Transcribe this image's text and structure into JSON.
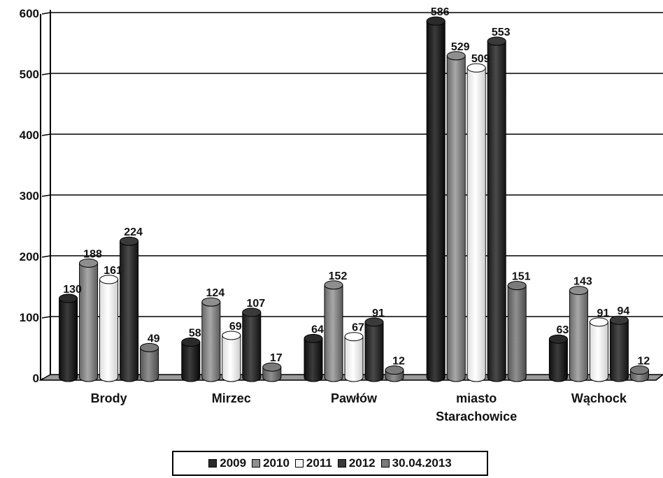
{
  "chart_data": {
    "type": "bar",
    "style": "3d-cylinder",
    "categories": [
      [
        "Brody"
      ],
      [
        "Mirzec"
      ],
      [
        "Pawłów"
      ],
      [
        "miasto",
        "Starachowice"
      ],
      [
        "Wąchock"
      ]
    ],
    "series": [
      {
        "name": "2009",
        "values": [
          130,
          58,
          64,
          586,
          63
        ],
        "color": "#2a2a2a"
      },
      {
        "name": "2010",
        "values": [
          188,
          124,
          152,
          529,
          143
        ],
        "color": "#8e8e8e"
      },
      {
        "name": "2011",
        "values": [
          161,
          69,
          67,
          509,
          91
        ],
        "color": "#f4f4f4"
      },
      {
        "name": "2012",
        "values": [
          224,
          107,
          91,
          553,
          94
        ],
        "color": "#3a3a3a"
      },
      {
        "name": "30.04.2013",
        "values": [
          49,
          17,
          12,
          151,
          12
        ],
        "color": "#7a7a7a"
      }
    ],
    "data_labels": [
      [
        "130",
        "58",
        "64",
        "586",
        "63"
      ],
      [
        "188",
        "124",
        "152",
        "529",
        "143"
      ],
      [
        "161",
        "69",
        "67",
        "509",
        "91"
      ],
      [
        "224",
        "107",
        "91",
        "553",
        "94"
      ],
      [
        "49",
        "17",
        "12",
        "151",
        "12"
      ]
    ],
    "yticks": [
      0,
      100,
      200,
      300,
      400,
      500,
      600
    ],
    "ylim": [
      0,
      600
    ],
    "grid": true,
    "legend_position": "bottom"
  }
}
